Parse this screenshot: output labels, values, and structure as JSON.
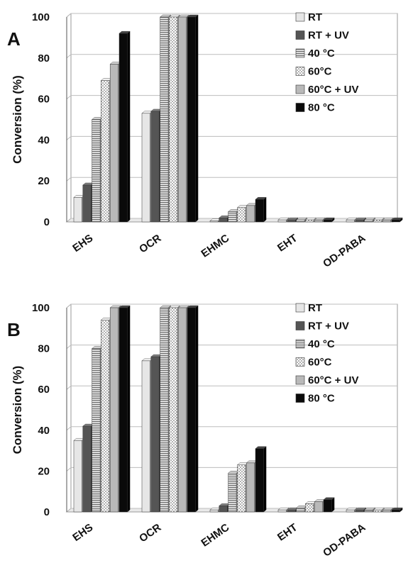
{
  "chart_data": [
    {
      "type": "bar",
      "panel": "A",
      "ylabel": "Conversion (%)",
      "ylim": [
        0,
        100
      ],
      "yticks": [
        "0",
        "20",
        "40",
        "60",
        "80",
        "100"
      ],
      "categories": [
        "EHS",
        "OCR",
        "EHMC",
        "EHT",
        "OD-PABA"
      ],
      "legend_position": "top-right",
      "series": [
        {
          "name": "RT",
          "values": [
            12,
            53,
            0.5,
            1,
            1
          ]
        },
        {
          "name": "RT + UV",
          "values": [
            18,
            54,
            2,
            1,
            1
          ]
        },
        {
          "name": "40 °C",
          "values": [
            50,
            100,
            5,
            1,
            1
          ]
        },
        {
          "name": "60°C",
          "values": [
            69,
            100,
            7,
            1,
            1
          ]
        },
        {
          "name": "60°C + UV",
          "values": [
            77,
            100,
            8,
            1,
            1
          ]
        },
        {
          "name": "80 °C",
          "values": [
            92,
            100,
            11,
            1,
            1
          ]
        }
      ]
    },
    {
      "type": "bar",
      "panel": "B",
      "ylabel": "Conversion (%)",
      "ylim": [
        0,
        100
      ],
      "yticks": [
        "0",
        "20",
        "40",
        "60",
        "80",
        "100"
      ],
      "categories": [
        "EHS",
        "OCR",
        "EHMC",
        "EHT",
        "OD-PABA"
      ],
      "legend_position": "top-right",
      "series": [
        {
          "name": "RT",
          "values": [
            35,
            74,
            1,
            1,
            1
          ]
        },
        {
          "name": "RT + UV",
          "values": [
            42,
            76,
            3,
            1,
            1
          ]
        },
        {
          "name": "40 °C",
          "values": [
            80,
            100,
            19,
            2,
            1
          ]
        },
        {
          "name": "60°C",
          "values": [
            94,
            100,
            23,
            4,
            1
          ]
        },
        {
          "name": "60°C + UV",
          "values": [
            100,
            100,
            24,
            5,
            1
          ]
        },
        {
          "name": "80 °C",
          "values": [
            100,
            100,
            31,
            6,
            1
          ]
        }
      ]
    }
  ]
}
